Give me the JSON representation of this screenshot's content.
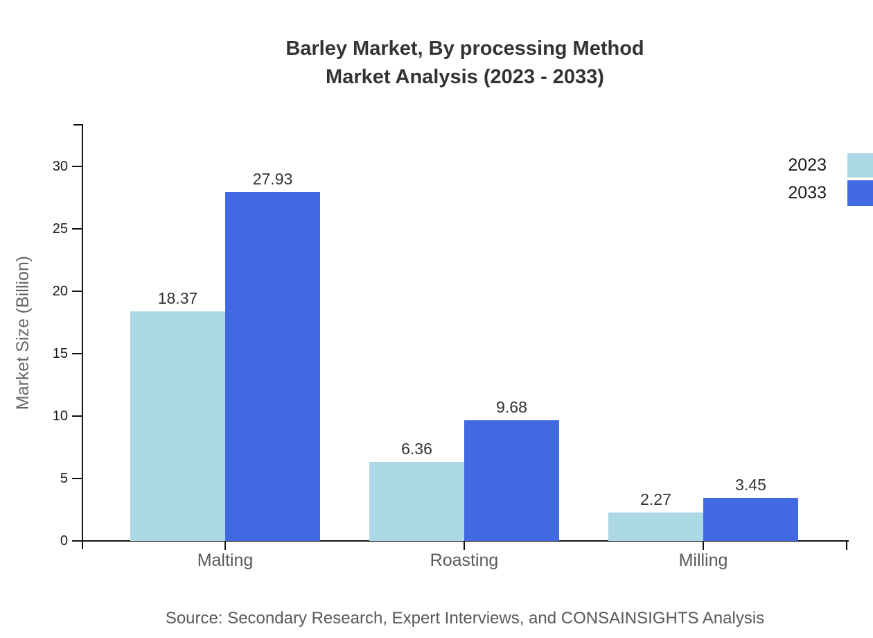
{
  "title": {
    "line1": "Barley Market, By processing Method",
    "line2": "Market Analysis (2023 - 2033)"
  },
  "source": "Source: Secondary Research, Expert Interviews, and CONSAINSIGHTS Analysis",
  "chart_data": {
    "type": "bar",
    "title": "Barley Market, By processing Method Market Analysis (2023 - 2033)",
    "categories": [
      "Malting",
      "Roasting",
      "Milling"
    ],
    "series": [
      {
        "name": "2023",
        "color": "#ADD8E6",
        "values": [
          18.37,
          6.36,
          2.27
        ]
      },
      {
        "name": "2033",
        "color": "#4169E1",
        "values": [
          27.93,
          9.68,
          3.45
        ]
      }
    ],
    "value_labels": [
      "18.37",
      "27.93",
      "6.36",
      "9.68",
      "2.27",
      "3.45"
    ],
    "xlabel": "",
    "ylabel": "Market Size (Billion)",
    "ylim": [
      0,
      33.3
    ],
    "yticks": [
      0,
      5,
      10,
      15,
      20,
      25,
      30
    ],
    "grid": false,
    "legend_position": "top-right",
    "bar_label_color": "#333333",
    "axis_color": "#111111"
  }
}
